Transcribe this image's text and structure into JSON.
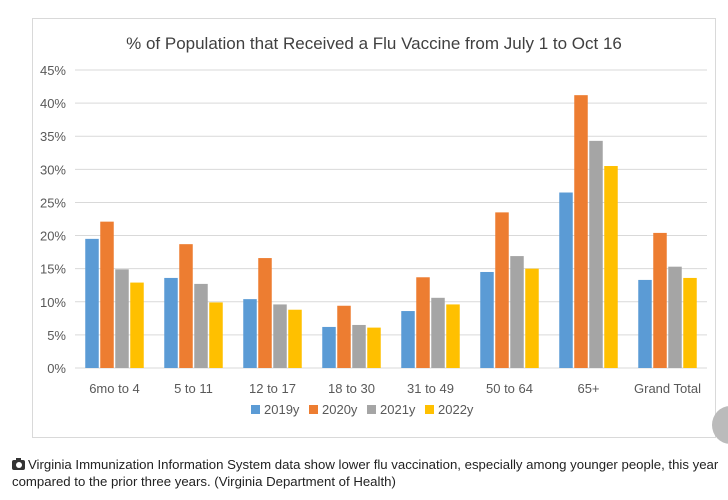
{
  "chart_data": {
    "type": "bar",
    "title": "% of Population that Received a Flu Vaccine from July 1 to Oct 16",
    "xlabel": "",
    "ylabel": "",
    "ylim": [
      0,
      45
    ],
    "yticks": [
      "0%",
      "5%",
      "10%",
      "15%",
      "20%",
      "25%",
      "30%",
      "35%",
      "40%",
      "45%"
    ],
    "grid": true,
    "legend_position": "bottom",
    "categories": [
      "6mo to 4",
      "5 to 11",
      "12 to 17",
      "18 to 30",
      "31 to 49",
      "50 to 64",
      "65+",
      "Grand Total"
    ],
    "series": [
      {
        "name": "2019y",
        "color": "#5b9bd5",
        "values": [
          19.5,
          13.6,
          10.4,
          6.2,
          8.6,
          14.5,
          26.5,
          13.3
        ]
      },
      {
        "name": "2020y",
        "color": "#ed7d31",
        "values": [
          22.1,
          18.7,
          16.6,
          9.4,
          13.7,
          23.5,
          41.2,
          20.4
        ]
      },
      {
        "name": "2021y",
        "color": "#a5a5a5",
        "values": [
          14.9,
          12.7,
          9.6,
          6.5,
          10.6,
          16.9,
          34.3,
          15.3
        ]
      },
      {
        "name": "2022y",
        "color": "#ffc000",
        "values": [
          12.9,
          9.9,
          8.8,
          6.1,
          9.6,
          15.0,
          30.5,
          13.6
        ]
      }
    ]
  },
  "caption": {
    "icon": "camera-icon",
    "text": "Virginia Immunization Information System data show lower flu vaccination, especially among younger people, this year compared to the prior three years. (Virginia Department of Health)"
  }
}
